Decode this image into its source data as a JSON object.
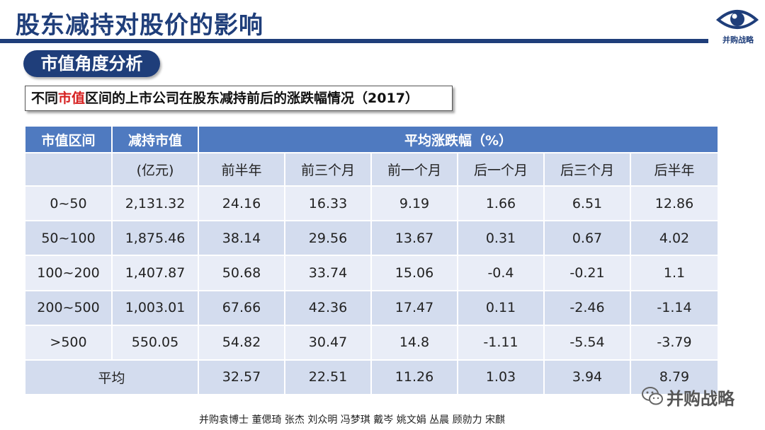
{
  "header": {
    "title": "股东减持对股价的影响",
    "logo_text": "并购战略"
  },
  "section": {
    "label": "市值角度分析"
  },
  "subtitle": {
    "prefix": "不同",
    "highlight": "市值",
    "suffix": "区间的上市公司在股东减持前后的涨跌幅情况（2017）"
  },
  "table": {
    "headers": {
      "range": "市值区间",
      "value": "减持市值",
      "avg_change": "平均涨跌幅（%）"
    },
    "subheaders": [
      "(亿元)",
      "前半年",
      "前三个月",
      "前一个月",
      "后一个月",
      "后三个月",
      "后半年"
    ],
    "rows": [
      [
        "0~50",
        "2,131.32",
        "24.16",
        "16.33",
        "9.19",
        "1.66",
        "6.51",
        "12.86"
      ],
      [
        "50~100",
        "1,875.46",
        "38.14",
        "29.56",
        "13.67",
        "0.31",
        "0.67",
        "4.02"
      ],
      [
        "100~200",
        "1,407.87",
        "50.68",
        "33.74",
        "15.06",
        "-0.4",
        "-0.21",
        "1.1"
      ],
      [
        "200~500",
        "1,003.01",
        "67.66",
        "42.36",
        "17.47",
        "0.11",
        "-2.46",
        "-1.14"
      ],
      [
        ">500",
        "550.05",
        "54.82",
        "30.47",
        "14.8",
        "-1.11",
        "-5.54",
        "-3.79"
      ]
    ],
    "average": {
      "label": "平均",
      "values": [
        "32.57",
        "22.51",
        "11.26",
        "1.03",
        "3.94",
        "8.79"
      ]
    }
  },
  "footer": {
    "authors": "并购袁博士 董偲琦 张杰 刘众明 冯梦琪 戴岑 姚文娟  丛晨 顾勍力 宋麒"
  },
  "watermark": {
    "text": "并购战略",
    "icon": "wechat-icon"
  },
  "colors": {
    "brand": "#1f3e7a",
    "table_header": "#4f7ac0",
    "row_dark": "#d3dcee",
    "row_light": "#e9edf7",
    "highlight": "#d62020"
  }
}
